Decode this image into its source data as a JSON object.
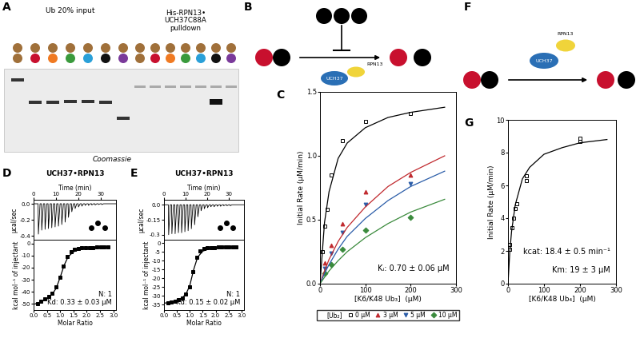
{
  "chart_data": [
    {
      "panel": "C",
      "type": "scatter",
      "x_label": "[K6/K48 Ub₃]  (µM)",
      "y_label": "Initial Rate (µM/min)",
      "xlim": [
        0,
        300
      ],
      "xticks": [
        0,
        100,
        200,
        300
      ],
      "ylim": [
        0,
        1.5
      ],
      "yticks": [
        {
          "value": 0,
          "label": "0.0"
        },
        {
          "value": 0.5,
          "label": "0.5"
        },
        {
          "value": 1.0,
          "label": "1.0"
        },
        {
          "value": 1.5,
          "label": "1.5"
        }
      ],
      "legend": "upper center",
      "legend_title": "[Ub₂]",
      "annotations": [
        "Kᵢ: 0.70 ± 0.06 µM"
      ],
      "series": [
        {
          "name": "0 µM",
          "color": "#000000",
          "marker": "open_square",
          "x": [
            5,
            10,
            15,
            25,
            50,
            100,
            200
          ],
          "values": [
            0.25,
            0.45,
            0.58,
            0.85,
            1.12,
            1.27,
            1.33
          ]
        },
        {
          "name": "3 µM",
          "color": "#c0282d",
          "marker": "triangle_up",
          "x": [
            10,
            25,
            50,
            100,
            200
          ],
          "values": [
            0.16,
            0.3,
            0.47,
            0.72,
            0.85
          ]
        },
        {
          "name": "5 µM",
          "color": "#2a5ca8",
          "marker": "triangle_down",
          "x": [
            10,
            25,
            50,
            100,
            200
          ],
          "values": [
            0.12,
            0.24,
            0.4,
            0.62,
            0.78
          ]
        },
        {
          "name": "10 µM",
          "color": "#3a8a3c",
          "marker": "diamond",
          "x": [
            10,
            25,
            50,
            100,
            200
          ],
          "values": [
            0.08,
            0.15,
            0.27,
            0.42,
            0.52
          ]
        },
        {
          "type": "line",
          "color": "#000000",
          "x": [
            0,
            10,
            20,
            40,
            60,
            100,
            150,
            200,
            275
          ],
          "values": [
            0,
            0.48,
            0.72,
            0.98,
            1.1,
            1.22,
            1.3,
            1.34,
            1.38
          ]
        },
        {
          "type": "line",
          "color": "#c0282d",
          "x": [
            0,
            10,
            20,
            40,
            60,
            100,
            150,
            200,
            275
          ],
          "values": [
            0,
            0.1,
            0.19,
            0.33,
            0.44,
            0.6,
            0.76,
            0.87,
            1.0
          ]
        },
        {
          "type": "line",
          "color": "#2a5ca8",
          "x": [
            0,
            10,
            20,
            40,
            60,
            100,
            150,
            200,
            275
          ],
          "values": [
            0,
            0.08,
            0.15,
            0.27,
            0.37,
            0.51,
            0.65,
            0.76,
            0.88
          ]
        },
        {
          "type": "line",
          "color": "#3a8a3c",
          "x": [
            0,
            10,
            20,
            40,
            60,
            100,
            150,
            200,
            275
          ],
          "values": [
            0,
            0.05,
            0.1,
            0.18,
            0.25,
            0.36,
            0.47,
            0.56,
            0.66
          ]
        }
      ]
    },
    {
      "panel": "G",
      "type": "scatter",
      "x_label": "[K6/K48 Ub₄]  (µM)",
      "y_label": "Initial Rate (µM/min)",
      "xlim": [
        0,
        300
      ],
      "xticks": [
        0,
        100,
        200,
        300
      ],
      "ylim": [
        0,
        10
      ],
      "yticks": [
        0,
        2,
        4,
        6,
        8,
        10
      ],
      "annotations": [
        "kcat: 18.4 ± 0.5 min⁻¹",
        "Km: 19 ± 3 µM"
      ],
      "series": [
        {
          "color": "#000000",
          "marker": "open_square",
          "x": [
            5,
            5,
            10,
            15,
            20,
            25,
            50,
            50,
            200,
            200
          ],
          "values": [
            2.1,
            2.4,
            3.4,
            4.0,
            4.6,
            4.9,
            6.3,
            6.6,
            8.7,
            8.9
          ]
        },
        {
          "type": "line",
          "color": "#000000",
          "x": [
            0,
            5,
            10,
            20,
            40,
            60,
            100,
            150,
            200,
            275
          ],
          "values": [
            0,
            1.96,
            3.2,
            4.8,
            6.4,
            7.1,
            7.9,
            8.3,
            8.6,
            8.8
          ]
        }
      ]
    },
    {
      "panel": "D",
      "title": "UCH37•RPN13",
      "type": "itc",
      "color": "#000000",
      "x_label": "Time (min)",
      "y_label": "µcal/sec",
      "xlim": [
        0,
        37
      ],
      "xticks": [
        0,
        10,
        20,
        30
      ],
      "ylim": [
        -0.45,
        0.05
      ],
      "yticks": [
        {
          "value": -0.4,
          "label": "-0.4"
        },
        {
          "value": -0.2,
          "label": "-0.2"
        },
        {
          "value": 0,
          "label": "0.0"
        }
      ],
      "x": [
        2,
        3.5,
        5,
        6.5,
        8,
        9.5,
        11,
        12.5,
        14,
        15.5,
        17,
        18.5,
        20,
        21.5,
        23,
        24.5,
        26,
        27.5,
        29,
        30.5
      ],
      "values": [
        -0.38,
        -0.33,
        -0.32,
        -0.31,
        -0.3,
        -0.29,
        -0.28,
        -0.26,
        -0.23,
        -0.17,
        -0.1,
        -0.06,
        -0.04,
        -0.03,
        -0.02,
        -0.02,
        -0.015,
        -0.015,
        -0.01,
        -0.01
      ]
    },
    {
      "type": "scatter",
      "x_label": "Molar Ratio",
      "y_label": "kcal mol⁻¹ of injectant",
      "xlim": [
        0,
        3.1
      ],
      "xticks": [
        {
          "value": 0,
          "label": "0.0"
        },
        {
          "value": 0.5,
          "label": "0.5"
        },
        {
          "value": 1.0,
          "label": "1.0"
        },
        {
          "value": 1.5,
          "label": "1.5"
        },
        {
          "value": 2.0,
          "label": "2.0"
        },
        {
          "value": 2.5,
          "label": "2.5"
        },
        {
          "value": 3.0,
          "label": "3.0"
        }
      ],
      "ylim": [
        -55,
        3
      ],
      "yticks": [
        -50,
        -40,
        -30,
        -20,
        -10,
        0
      ],
      "annotations": [
        "N: 1",
        "Kd: 0.33 ± 0.03 µM"
      ],
      "series": [
        {
          "color": "#000000",
          "marker": "square",
          "x": [
            0.14,
            0.28,
            0.42,
            0.56,
            0.7,
            0.84,
            0.98,
            1.12,
            1.26,
            1.4,
            1.54,
            1.68,
            1.82,
            1.96,
            2.1,
            2.24,
            2.38,
            2.52,
            2.66,
            2.8
          ],
          "values": [
            -50,
            -48,
            -46,
            -44,
            -41,
            -36,
            -28,
            -19,
            -11,
            -7,
            -5,
            -4.2,
            -3.8,
            -3.6,
            -3.4,
            -3.3,
            -3.2,
            -3.1,
            -3.1,
            -3
          ]
        },
        {
          "type": "line",
          "color": "#000000",
          "x": [
            0.05,
            0.3,
            0.5,
            0.7,
            0.85,
            1.0,
            1.15,
            1.3,
            1.5,
            1.8,
            2.2,
            2.8
          ],
          "values": [
            -50,
            -48,
            -46,
            -42,
            -37,
            -28,
            -18,
            -11,
            -7,
            -4.5,
            -3.6,
            -3.1
          ]
        }
      ]
    },
    {
      "panel": "E",
      "title": "UCH37•RPN13",
      "type": "itc",
      "color": "#000000",
      "x_label": "Time (min)",
      "y_label": "µcal/sec",
      "xlim": [
        0,
        37
      ],
      "xticks": [
        0,
        10,
        20,
        30
      ],
      "ylim": [
        -0.35,
        0.05
      ],
      "yticks": [
        {
          "value": -0.3,
          "label": "-0.3"
        },
        {
          "value": -0.15,
          "label": "-0.15"
        },
        {
          "value": 0,
          "label": "0.0"
        }
      ],
      "x": [
        2,
        3.5,
        5,
        6.5,
        8,
        9.5,
        11,
        12.5,
        14,
        15.5,
        17,
        18.5,
        20,
        21.5,
        23,
        24.5,
        26,
        27.5,
        29,
        30.5
      ],
      "values": [
        -0.3,
        -0.29,
        -0.29,
        -0.28,
        -0.28,
        -0.27,
        -0.26,
        -0.24,
        -0.2,
        -0.12,
        -0.06,
        -0.04,
        -0.03,
        -0.02,
        -0.02,
        -0.015,
        -0.015,
        -0.01,
        -0.01,
        -0.01
      ]
    },
    {
      "type": "scatter",
      "x_label": "Molar Ratio",
      "y_label": "kcal mol⁻¹ of injectant",
      "xlim": [
        0,
        3.1
      ],
      "xticks": [
        {
          "value": 0,
          "label": "0.0"
        },
        {
          "value": 0.5,
          "label": "0.5"
        },
        {
          "value": 1.0,
          "label": "1.0"
        },
        {
          "value": 1.5,
          "label": "1.5"
        },
        {
          "value": 2.0,
          "label": "2.0"
        },
        {
          "value": 2.5,
          "label": "2.5"
        },
        {
          "value": 3.0,
          "label": "3.0"
        }
      ],
      "ylim": [
        -38,
        2
      ],
      "yticks": [
        -35,
        -30,
        -25,
        -20,
        -15,
        -10,
        -5,
        0
      ],
      "annotations": [
        "N: 1",
        "Kd: 0.15 ± 0.02 µM"
      ],
      "series": [
        {
          "color": "#000000",
          "marker": "square",
          "x": [
            0.14,
            0.28,
            0.42,
            0.56,
            0.7,
            0.84,
            0.98,
            1.12,
            1.26,
            1.4,
            1.54,
            1.68,
            1.82,
            1.96,
            2.1,
            2.24,
            2.38,
            2.52,
            2.66,
            2.8
          ],
          "values": [
            -34,
            -33.5,
            -33,
            -32,
            -31,
            -29,
            -25,
            -16,
            -8,
            -4.5,
            -3.2,
            -2.7,
            -2.5,
            -2.4,
            -2.3,
            -2.2,
            -2.2,
            -2.1,
            -2.1,
            -2
          ]
        },
        {
          "type": "line",
          "color": "#000000",
          "x": [
            0.05,
            0.3,
            0.5,
            0.7,
            0.85,
            1.0,
            1.15,
            1.3,
            1.5,
            1.8,
            2.2,
            2.8
          ],
          "values": [
            -34,
            -33.5,
            -32.5,
            -31,
            -29,
            -24,
            -15,
            -8,
            -4.5,
            -3,
            -2.5,
            -2.1
          ]
        }
      ]
    }
  ],
  "panel_A": {
    "label": "A",
    "input_label": "Ub 20% input",
    "pulldown_label": "His-RPN13•\nUCH37C88A\npulldown",
    "stain": "Coomassie"
  },
  "panel_B": {
    "label": "B",
    "enzyme_labels": [
      "RPN13",
      "UCH37"
    ]
  },
  "panel_F": {
    "label": "F",
    "enzyme_labels": [
      "RPN13",
      "UCH37"
    ]
  }
}
